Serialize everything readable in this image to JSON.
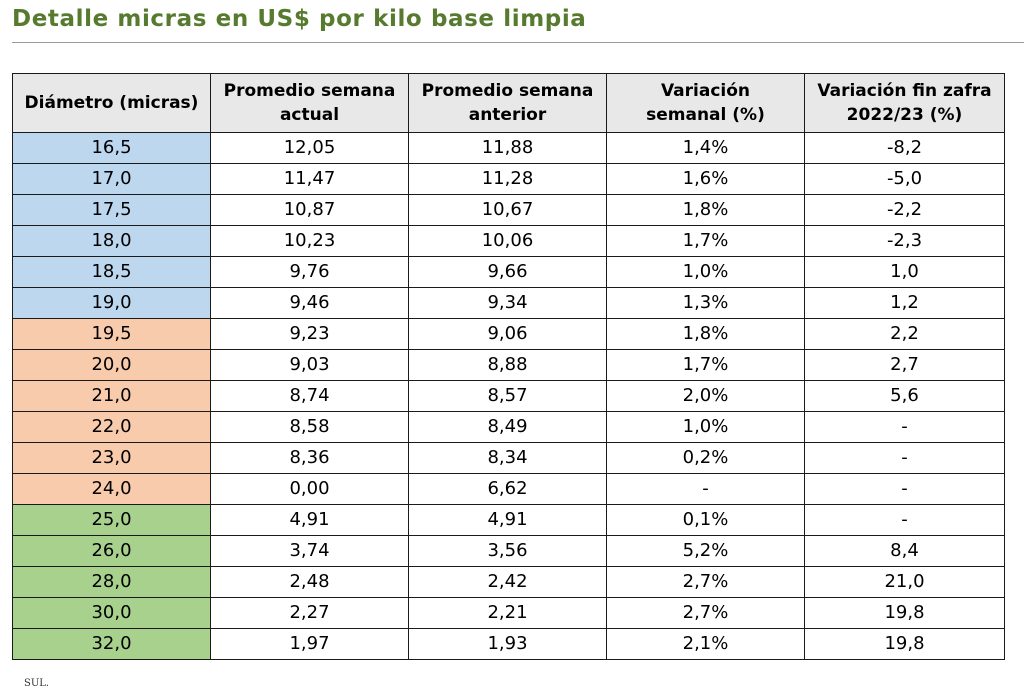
{
  "title": "Detalle micras en US$ por kilo base limpia",
  "table": {
    "headers": [
      {
        "lines": [
          "Diámetro (micras)"
        ]
      },
      {
        "lines": [
          "Promedio semana",
          "actual"
        ]
      },
      {
        "lines": [
          "Promedio semana",
          "anterior"
        ]
      },
      {
        "lines": [
          "Variación",
          "semanal (%)"
        ]
      },
      {
        "lines": [
          "Variación fin zafra",
          "2022/23 (%)"
        ]
      }
    ],
    "group_colors": {
      "blue": "#bdd7ee",
      "orange": "#f8cbad",
      "green": "#a9d18e"
    },
    "rows": [
      {
        "group": "blue",
        "cells": [
          "16,5",
          "12,05",
          "11,88",
          "1,4%",
          "-8,2"
        ]
      },
      {
        "group": "blue",
        "cells": [
          "17,0",
          "11,47",
          "11,28",
          "1,6%",
          "-5,0"
        ]
      },
      {
        "group": "blue",
        "cells": [
          "17,5",
          "10,87",
          "10,67",
          "1,8%",
          "-2,2"
        ]
      },
      {
        "group": "blue",
        "cells": [
          "18,0",
          "10,23",
          "10,06",
          "1,7%",
          "-2,3"
        ]
      },
      {
        "group": "blue",
        "cells": [
          "18,5",
          "9,76",
          "9,66",
          "1,0%",
          "1,0"
        ]
      },
      {
        "group": "blue",
        "cells": [
          "19,0",
          "9,46",
          "9,34",
          "1,3%",
          "1,2"
        ]
      },
      {
        "group": "orange",
        "cells": [
          "19,5",
          "9,23",
          "9,06",
          "1,8%",
          "2,2"
        ]
      },
      {
        "group": "orange",
        "cells": [
          "20,0",
          "9,03",
          "8,88",
          "1,7%",
          "2,7"
        ]
      },
      {
        "group": "orange",
        "cells": [
          "21,0",
          "8,74",
          "8,57",
          "2,0%",
          "5,6"
        ]
      },
      {
        "group": "orange",
        "cells": [
          "22,0",
          "8,58",
          "8,49",
          "1,0%",
          "-"
        ]
      },
      {
        "group": "orange",
        "cells": [
          "23,0",
          "8,36",
          "8,34",
          "0,2%",
          "-"
        ]
      },
      {
        "group": "orange",
        "cells": [
          "24,0",
          "0,00",
          "6,62",
          "-",
          "-"
        ]
      },
      {
        "group": "green",
        "cells": [
          "25,0",
          "4,91",
          "4,91",
          "0,1%",
          "-"
        ]
      },
      {
        "group": "green",
        "cells": [
          "26,0",
          "3,74",
          "3,56",
          "5,2%",
          "8,4"
        ]
      },
      {
        "group": "green",
        "cells": [
          "28,0",
          "2,48",
          "2,42",
          "2,7%",
          "21,0"
        ]
      },
      {
        "group": "green",
        "cells": [
          "30,0",
          "2,27",
          "2,21",
          "2,7%",
          "19,8"
        ]
      },
      {
        "group": "green",
        "cells": [
          "32,0",
          "1,97",
          "1,93",
          "2,1%",
          "19,8"
        ]
      }
    ]
  },
  "source_note": "SUL."
}
